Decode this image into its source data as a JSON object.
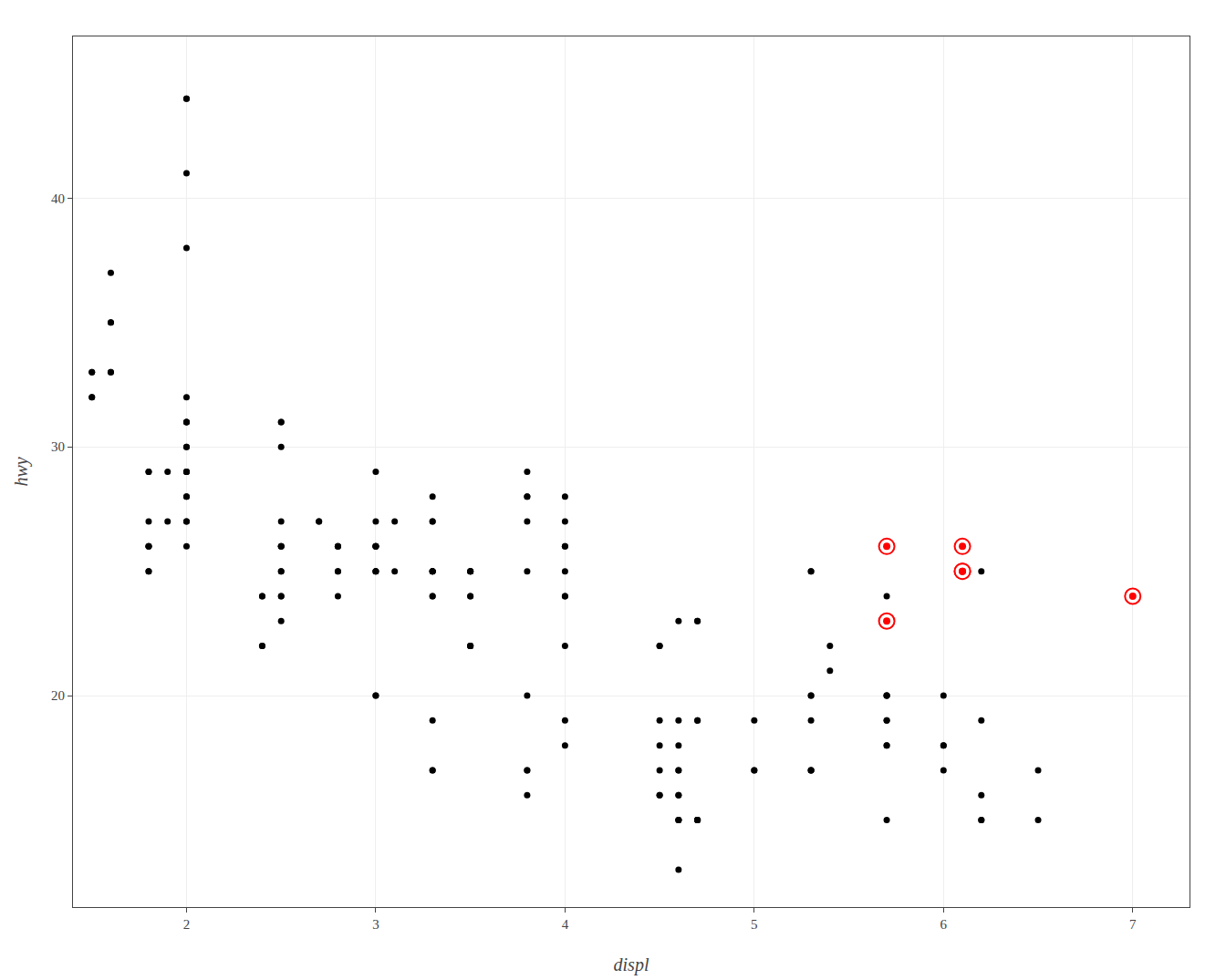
{
  "chart_data": {
    "type": "scatter",
    "xlabel": "displ",
    "ylabel": "hwy",
    "xlim": [
      1.4,
      7.3
    ],
    "ylim": [
      11.5,
      46.5
    ],
    "xticks": [
      2,
      3,
      4,
      5,
      6,
      7
    ],
    "yticks": [
      20,
      30,
      40
    ],
    "grid": true,
    "series": [
      {
        "color": "#000000",
        "marker": "circle",
        "x": [
          1.8,
          1.8,
          2.0,
          2.0,
          2.8,
          2.8,
          3.1,
          1.8,
          1.8,
          2.0,
          2.0,
          2.8,
          2.8,
          3.1,
          1.8,
          1.8,
          2.0,
          2.0,
          2.8,
          2.8,
          1.6,
          1.6,
          1.6,
          1.6,
          2.0,
          2.0,
          2.0,
          2.0,
          1.9,
          1.9,
          2.0,
          2.0,
          2.0,
          2.5,
          2.5,
          2.5,
          2.5,
          2.5,
          2.5,
          2.5,
          2.5,
          2.5,
          2.7,
          2.7,
          3.0,
          3.0,
          3.0,
          3.0,
          3.3,
          3.3,
          3.3,
          3.3,
          3.8,
          3.8,
          3.8,
          3.8,
          4.0,
          4.0,
          4.0,
          4.0,
          4.0,
          4.0,
          4.7,
          4.7,
          4.7,
          4.7,
          3.5,
          3.5,
          3.5,
          3.5,
          3.5,
          3.3,
          3.3,
          3.3,
          3.8,
          3.8,
          3.8,
          3.8,
          4.0,
          4.0,
          4.6,
          4.6,
          4.6,
          4.6,
          4.6,
          4.6,
          4.6,
          4.6,
          4.6,
          5.0,
          5.0,
          5.0,
          5.7,
          5.7,
          5.7,
          5.7,
          5.7,
          6.0,
          6.5,
          2.4,
          2.4,
          3.0,
          3.0,
          3.5,
          4.0,
          4.5,
          4.5,
          5.4,
          5.4,
          6.0,
          6.2,
          5.3,
          5.3,
          5.3,
          5.7,
          5.7,
          4.7,
          4.7,
          4.7,
          4.7,
          6.2,
          6.2,
          5.3,
          5.3,
          5.3,
          5.7,
          6.5,
          1.8,
          1.8,
          2.0,
          2.0,
          2.0,
          2.4,
          2.4,
          2.5,
          1.5,
          1.5,
          1.5,
          1.5,
          1.6,
          2.0,
          2.0,
          2.5,
          2.5,
          3.5,
          3.5,
          3.0,
          3.0,
          3.0,
          3.0,
          3.0,
          3.3,
          3.3,
          3.3,
          3.3,
          3.3,
          3.8,
          4.0,
          4.6,
          4.6,
          4.5,
          4.5,
          4.5,
          4.5,
          4.5,
          3.5,
          3.5,
          5.3,
          5.3,
          5.7,
          6.2,
          6.2,
          6.0,
          6.0
        ],
        "values": [
          29,
          29,
          31,
          30,
          26,
          26,
          27,
          26,
          25,
          28,
          27,
          25,
          25,
          25,
          27,
          25,
          29,
          26,
          26,
          24,
          33,
          35,
          35,
          37,
          44,
          44,
          41,
          38,
          29,
          27,
          31,
          31,
          32,
          25,
          25,
          26,
          26,
          24,
          24,
          30,
          31,
          31,
          27,
          27,
          26,
          26,
          25,
          25,
          24,
          24,
          25,
          25,
          27,
          28,
          28,
          29,
          26,
          26,
          25,
          24,
          27,
          28,
          23,
          23,
          19,
          19,
          22,
          22,
          22,
          24,
          24,
          17,
          17,
          19,
          20,
          16,
          17,
          17,
          19,
          18,
          17,
          15,
          16,
          15,
          15,
          16,
          17,
          18,
          19,
          19,
          17,
          17,
          20,
          19,
          19,
          18,
          18,
          17,
          17,
          22,
          22,
          20,
          20,
          22,
          22,
          22,
          22,
          22,
          21,
          20,
          19,
          19,
          20,
          20,
          20,
          20,
          15,
          15,
          15,
          15,
          16,
          15,
          17,
          17,
          17,
          15,
          15,
          26,
          26,
          27,
          30,
          29,
          24,
          24,
          23,
          32,
          32,
          33,
          33,
          33,
          29,
          28,
          27,
          26,
          25,
          25,
          27,
          26,
          29,
          26,
          25,
          25,
          25,
          27,
          28,
          27,
          25,
          24,
          13,
          23,
          16,
          16,
          17,
          18,
          19,
          25,
          25,
          25,
          25,
          24,
          15,
          25,
          18,
          18
        ]
      },
      {
        "color": "#FF0000",
        "marker": "ringed",
        "x": [
          5.7,
          5.7,
          6.1,
          6.1,
          6.1,
          7.0
        ],
        "values": [
          26,
          23,
          26,
          25,
          25,
          24
        ]
      }
    ]
  }
}
